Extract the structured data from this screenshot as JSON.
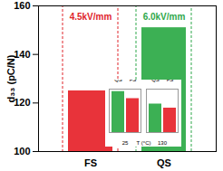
{
  "chart_data": [
    {
      "type": "bar",
      "categories": [
        "FS",
        "QS"
      ],
      "values": [
        125,
        151
      ],
      "colors": [
        "#e8333a",
        "#3cb054"
      ],
      "y_label": "d₃₃ (pC/N)",
      "ylim": [
        100,
        160
      ],
      "yticks": [
        100,
        120,
        140,
        160
      ],
      "annotations": [
        {
          "text": "4.5kV/mm",
          "category": "FS",
          "color": "#e0242b"
        },
        {
          "text": "6.0kV/mm",
          "category": "QS",
          "color": "#2ea84a"
        }
      ]
    },
    {
      "type": "bar",
      "x_label": "T (°C)",
      "categories": [
        "25",
        "130"
      ],
      "series": [
        {
          "name": "QS",
          "color": "#3cb054",
          "values": [
            151,
            105
          ]
        },
        {
          "name": "FS",
          "color": "#e8333a",
          "values": [
            125,
            90
          ]
        }
      ],
      "ylim": [
        0,
        160
      ],
      "tick_labels": "x"
    }
  ]
}
